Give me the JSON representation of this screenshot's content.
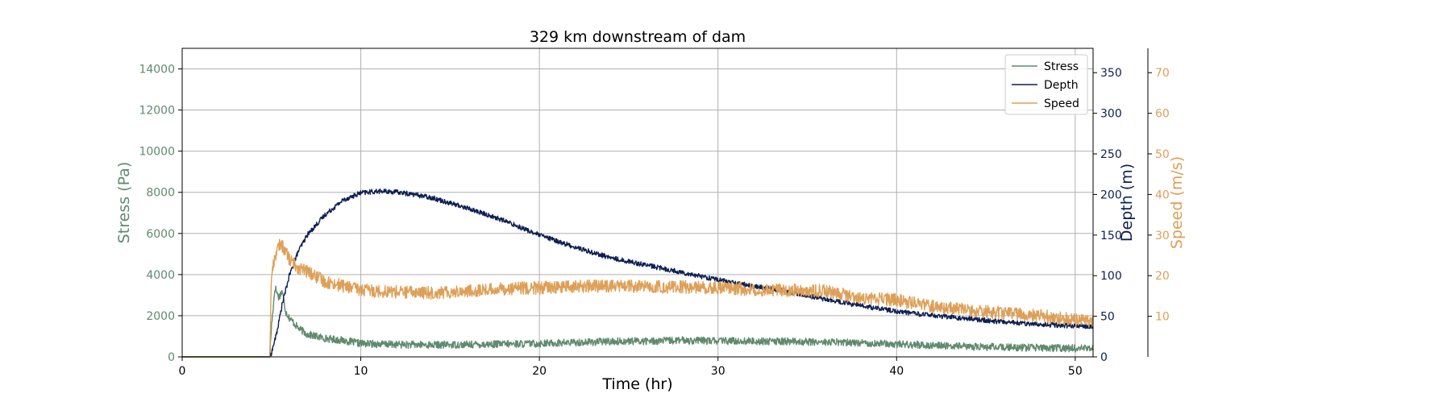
{
  "chart_data": {
    "type": "line",
    "title": "329 km downstream of dam",
    "xlabel": "Time (hr)",
    "xlim": [
      0,
      51
    ],
    "xticks": [
      0,
      10,
      20,
      30,
      40,
      50
    ],
    "grid": true,
    "legend_placement": "top-right",
    "axes": [
      {
        "id": "stress",
        "label": "Stress (Pa)",
        "color": "#5f8a6e",
        "ylim": [
          0,
          15000
        ],
        "ticks": [
          0,
          2000,
          4000,
          6000,
          8000,
          10000,
          12000,
          14000
        ]
      },
      {
        "id": "depth",
        "label": "Depth (m)",
        "color": "#0d1f52",
        "ylim": [
          0,
          380
        ],
        "ticks": [
          0,
          50,
          100,
          150,
          200,
          250,
          300,
          350
        ]
      },
      {
        "id": "speed",
        "label": "Speed (m/s)",
        "color": "#de9f57",
        "ylim": [
          0,
          76
        ],
        "ticks": [
          10,
          20,
          30,
          40,
          50,
          60,
          70
        ]
      }
    ],
    "series": [
      {
        "name": "Stress",
        "axis": "stress",
        "color": "#5f8a6e",
        "noise": 180,
        "x": [
          0,
          4.9,
          5.0,
          5.2,
          5.4,
          5.6,
          5.8,
          6.0,
          6.5,
          7,
          8,
          9,
          10,
          12,
          14,
          16,
          18,
          20,
          22,
          24,
          26,
          28,
          30,
          32,
          34,
          36,
          38,
          40,
          42,
          44,
          46,
          48,
          51
        ],
        "y": [
          0,
          0,
          1500,
          3400,
          2900,
          3200,
          2200,
          1900,
          1400,
          1100,
          900,
          800,
          650,
          600,
          580,
          600,
          620,
          650,
          700,
          750,
          770,
          800,
          780,
          760,
          750,
          720,
          690,
          620,
          560,
          500,
          460,
          440,
          400
        ]
      },
      {
        "name": "Depth",
        "axis": "depth",
        "color": "#0d1f52",
        "noise": 3,
        "x": [
          0,
          4.9,
          5.0,
          5.3,
          5.6,
          6.0,
          6.5,
          7,
          8,
          9,
          10,
          11,
          12,
          13,
          14,
          16,
          18,
          20,
          22,
          24,
          26,
          28,
          30,
          32,
          34,
          36,
          38,
          40,
          42,
          44,
          46,
          48,
          51
        ],
        "y": [
          0,
          0,
          5,
          30,
          65,
          100,
          130,
          150,
          175,
          193,
          202,
          204,
          203,
          200,
          196,
          183,
          168,
          150,
          135,
          122,
          113,
          104,
          95,
          87,
          80,
          71,
          63,
          56,
          51,
          47,
          43,
          40,
          37
        ]
      },
      {
        "name": "Speed",
        "axis": "speed",
        "color": "#de9f57",
        "noise": 1.6,
        "x": [
          0,
          4.9,
          5.0,
          5.2,
          5.5,
          5.8,
          6.0,
          6.5,
          7,
          8,
          9,
          10,
          12,
          14,
          16,
          18,
          20,
          22,
          24,
          26,
          28,
          30,
          32,
          34,
          36,
          38,
          40,
          42,
          44,
          46,
          48,
          51
        ],
        "y": [
          0,
          0,
          20,
          25,
          28,
          26,
          24,
          22,
          21,
          18.5,
          17.5,
          16.5,
          16,
          15.8,
          16.2,
          16.8,
          17,
          17.3,
          17.5,
          17.2,
          17.2,
          17,
          16.6,
          16.5,
          16.2,
          14.5,
          14,
          12.5,
          11.5,
          10.8,
          10.2,
          8.5
        ]
      }
    ]
  }
}
